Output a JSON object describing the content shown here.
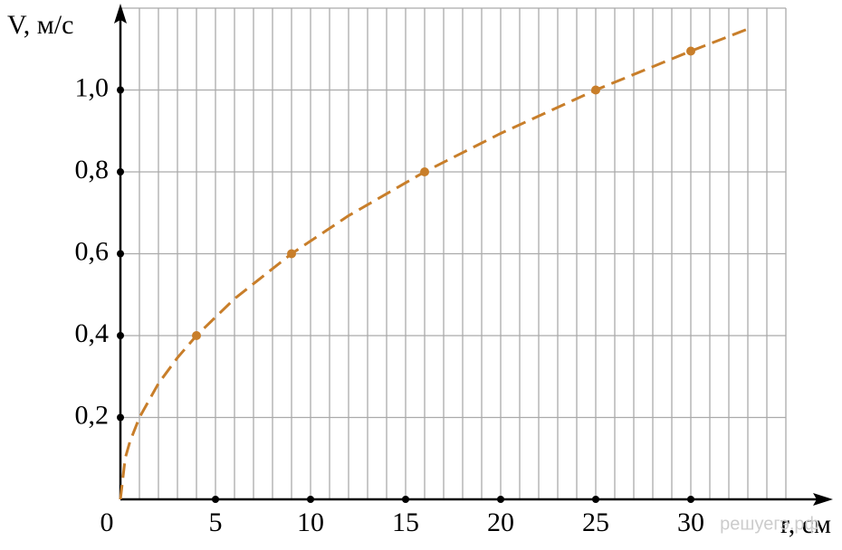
{
  "chart_data": {
    "type": "line",
    "y_label": "V, м/с",
    "x_label": "r, см",
    "watermark": "решуегэ.рф",
    "xlim": [
      0,
      35
    ],
    "ylim": [
      0,
      1.2
    ],
    "xticks": [
      0,
      5,
      10,
      15,
      20,
      25,
      30
    ],
    "yticks": [
      {
        "value": 0.2,
        "label": "0,2"
      },
      {
        "value": 0.4,
        "label": "0,4"
      },
      {
        "value": 0.6,
        "label": "0,6"
      },
      {
        "value": 0.8,
        "label": "0,8"
      },
      {
        "value": 1.0,
        "label": "1,0"
      }
    ],
    "x_grid": [
      1,
      2,
      3,
      4,
      5,
      6,
      7,
      8,
      9,
      10,
      11,
      12,
      13,
      14,
      15,
      16,
      17,
      18,
      19,
      20,
      21,
      22,
      23,
      24,
      25,
      26,
      27,
      28,
      29,
      30,
      31,
      32,
      33,
      34,
      35
    ],
    "grid": true,
    "series": [
      {
        "color": "#c87e2a",
        "style": "dashed",
        "x": [
          0,
          0.25,
          0.5,
          1,
          2,
          3,
          4,
          6,
          9,
          12,
          16,
          20,
          25,
          30,
          33
        ],
        "values": [
          0,
          0.1,
          0.141,
          0.2,
          0.283,
          0.346,
          0.4,
          0.49,
          0.6,
          0.693,
          0.8,
          0.894,
          1.0,
          1.095,
          1.149
        ]
      },
      {
        "color": "#c87e2a",
        "style": "points",
        "x": [
          4,
          9,
          16,
          25,
          30
        ],
        "values": [
          0.4,
          0.6,
          0.8,
          1.0,
          1.095
        ]
      }
    ]
  }
}
